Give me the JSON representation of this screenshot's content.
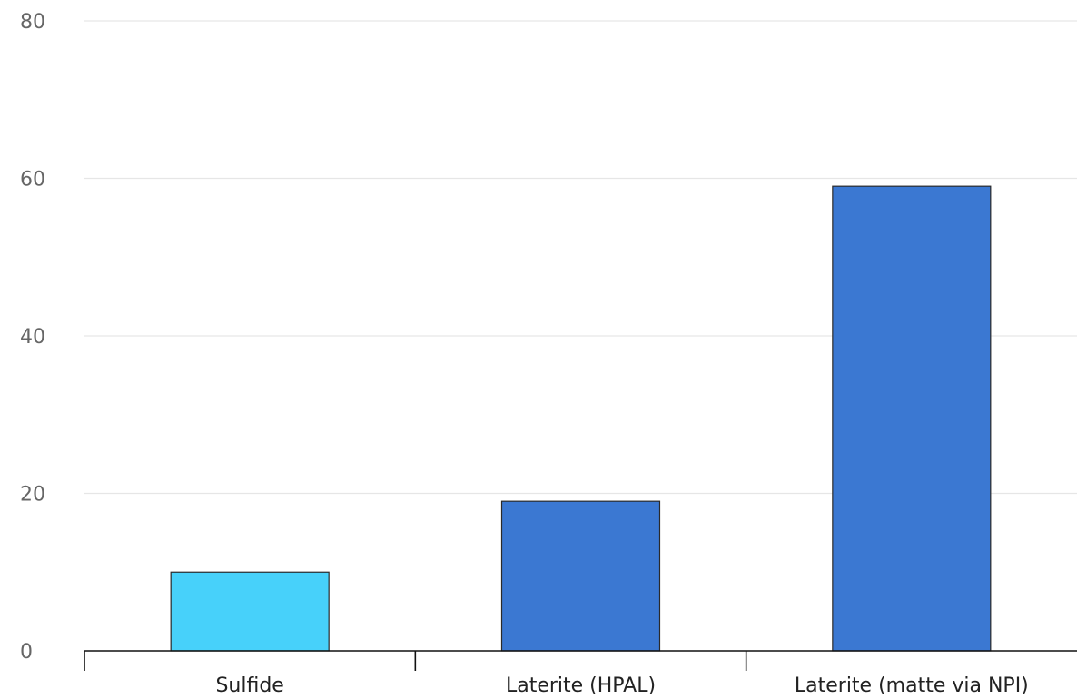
{
  "chart_data": {
    "type": "bar",
    "title": "",
    "xlabel": "",
    "ylabel": "",
    "categories": [
      "Sulfide",
      "Laterite (HPAL)",
      "Laterite (matte via NPI)"
    ],
    "values": [
      10,
      19,
      59
    ],
    "bar_colors": [
      "#47d1fa",
      "#3b78d2",
      "#3b78d2"
    ],
    "ylim": [
      0,
      80
    ],
    "yticks": [
      0,
      20,
      40,
      60,
      80
    ],
    "grid": true,
    "legend": "none"
  }
}
